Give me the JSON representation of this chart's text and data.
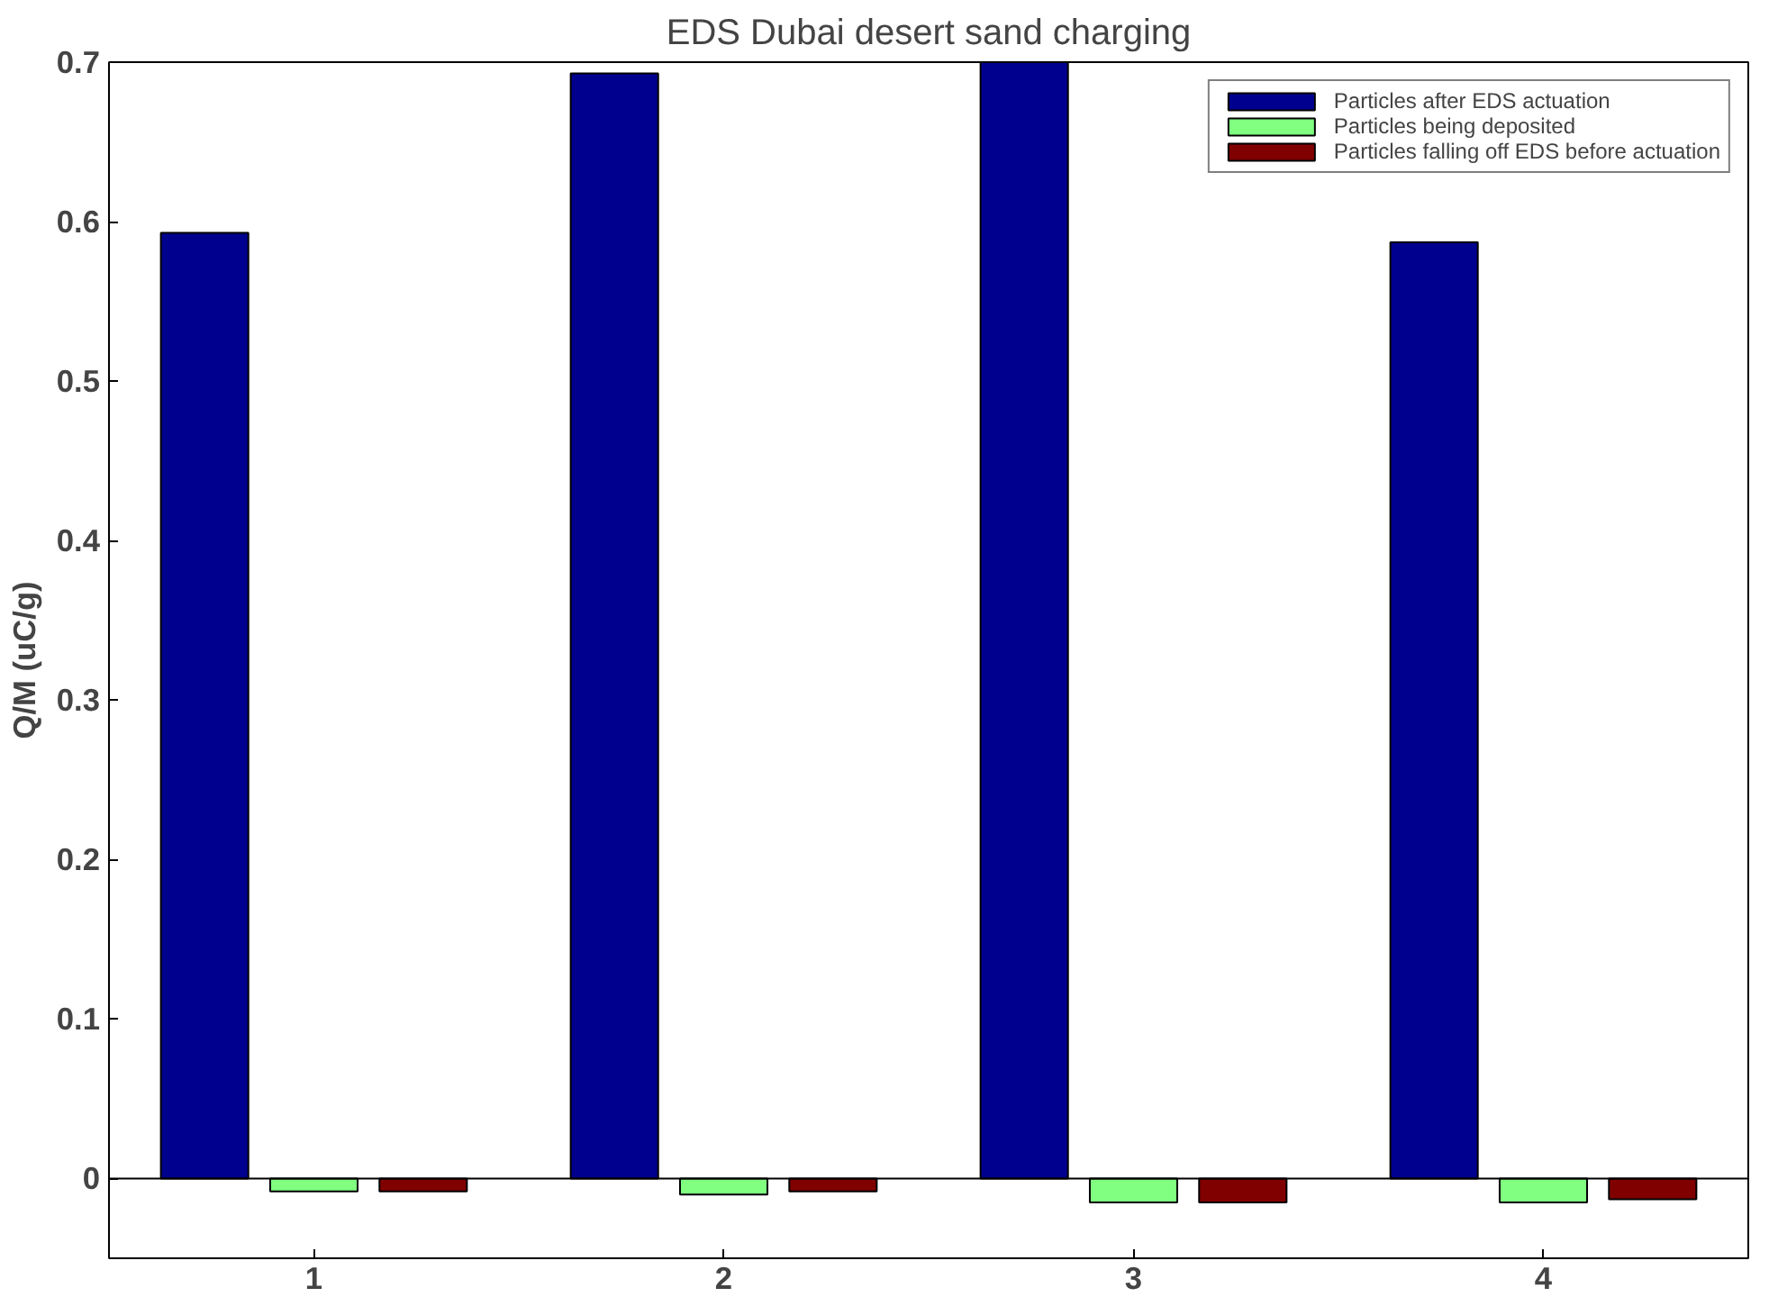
{
  "chart_data": {
    "type": "bar",
    "title": "EDS Dubai desert sand charging",
    "ylabel": "Q/M (uC/g)",
    "categories": [
      "1",
      "2",
      "3",
      "4"
    ],
    "series": [
      {
        "name": "Particles after EDS actuation",
        "color": "#00008f",
        "values": [
          0.593,
          0.693,
          0.7,
          0.587
        ]
      },
      {
        "name": "Particles being deposited",
        "color": "#80ff80",
        "values": [
          -0.008,
          -0.01,
          -0.015,
          -0.015
        ]
      },
      {
        "name": "Particles falling off EDS before actuation",
        "color": "#800000",
        "values": [
          -0.008,
          -0.008,
          -0.015,
          -0.013
        ]
      }
    ],
    "ylim": [
      -0.05,
      0.7
    ],
    "yticks": [
      0,
      0.1,
      0.2,
      0.3,
      0.4,
      0.5,
      0.6,
      0.7
    ],
    "ref_lines": [
      {
        "axis": "y",
        "value": 0,
        "color": "#000000"
      }
    ],
    "grid": false,
    "legend": "top right"
  }
}
